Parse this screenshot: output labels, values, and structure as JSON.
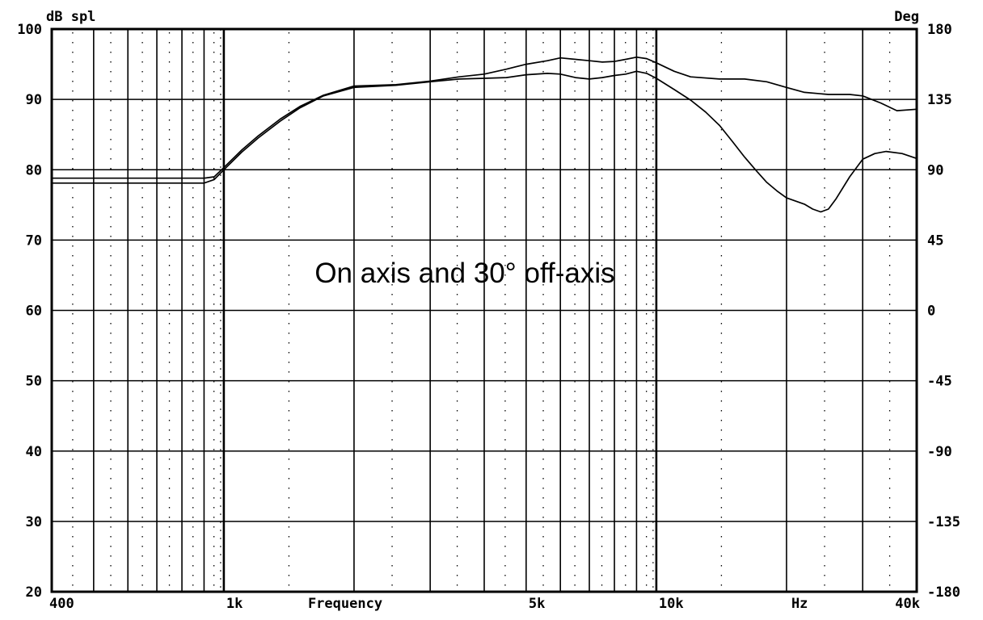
{
  "chart_data": {
    "type": "line",
    "title": "",
    "y_left_label": "dB spl",
    "y_right_label": "Deg",
    "x_label": "Frequency",
    "x_unit_label": "Hz",
    "annotation": "On axis and 30° off-axis",
    "x_scale": "log",
    "xlim": [
      400,
      40000
    ],
    "ylim": [
      20,
      100
    ],
    "y_right_lim": [
      -180,
      180
    ],
    "grid": true,
    "x_ticks": [
      {
        "value": 400,
        "label": "400"
      },
      {
        "value": 1000,
        "label": "1k"
      },
      {
        "value": 5000,
        "label": "5k"
      },
      {
        "value": 10000,
        "label": "10k"
      },
      {
        "value": 40000,
        "label": "40k"
      }
    ],
    "y_left_ticks": [
      "100",
      "90",
      "80",
      "70",
      "60",
      "50",
      "40",
      "30",
      "20"
    ],
    "y_right_ticks": [
      "180",
      "135",
      "90",
      "45",
      "0",
      "-45",
      "-90",
      "-135",
      "-180"
    ],
    "series": [
      {
        "color": "#000000",
        "points": [
          [
            400,
            78.8
          ],
          [
            600,
            78.8
          ],
          [
            900,
            78.8
          ],
          [
            950,
            79.0
          ],
          [
            1000,
            80.3
          ],
          [
            1100,
            82.8
          ],
          [
            1200,
            84.8
          ],
          [
            1350,
            87.2
          ],
          [
            1500,
            89.0
          ],
          [
            1700,
            90.6
          ],
          [
            2000,
            91.9
          ],
          [
            2500,
            92.1
          ],
          [
            3000,
            92.6
          ],
          [
            3500,
            93.2
          ],
          [
            4000,
            93.6
          ],
          [
            4500,
            94.3
          ],
          [
            5000,
            95.0
          ],
          [
            5600,
            95.5
          ],
          [
            6000,
            95.9
          ],
          [
            6500,
            95.7
          ],
          [
            7000,
            95.5
          ],
          [
            7500,
            95.3
          ],
          [
            8000,
            95.4
          ],
          [
            8500,
            95.7
          ],
          [
            9000,
            96.0
          ],
          [
            9500,
            95.8
          ],
          [
            10000,
            95.2
          ],
          [
            11000,
            94.0
          ],
          [
            12000,
            93.2
          ],
          [
            14000,
            92.9
          ],
          [
            16000,
            92.9
          ],
          [
            18000,
            92.5
          ],
          [
            20000,
            91.7
          ],
          [
            22000,
            91.0
          ],
          [
            25000,
            90.7
          ],
          [
            28000,
            90.7
          ],
          [
            30000,
            90.5
          ],
          [
            33000,
            89.5
          ],
          [
            36000,
            88.4
          ],
          [
            40000,
            88.6
          ]
        ]
      },
      {
        "color": "#000000",
        "points": [
          [
            400,
            78.1
          ],
          [
            600,
            78.1
          ],
          [
            900,
            78.1
          ],
          [
            950,
            78.6
          ],
          [
            1000,
            80.0
          ],
          [
            1100,
            82.5
          ],
          [
            1200,
            84.5
          ],
          [
            1350,
            86.9
          ],
          [
            1500,
            88.8
          ],
          [
            1700,
            90.5
          ],
          [
            2000,
            91.7
          ],
          [
            2500,
            92.0
          ],
          [
            3000,
            92.5
          ],
          [
            3500,
            92.9
          ],
          [
            4000,
            93.0
          ],
          [
            4500,
            93.1
          ],
          [
            5000,
            93.5
          ],
          [
            5600,
            93.7
          ],
          [
            6000,
            93.6
          ],
          [
            6500,
            93.1
          ],
          [
            7000,
            92.9
          ],
          [
            7500,
            93.1
          ],
          [
            8000,
            93.4
          ],
          [
            8500,
            93.6
          ],
          [
            9000,
            94.0
          ],
          [
            9500,
            93.7
          ],
          [
            10000,
            93.0
          ],
          [
            11000,
            91.4
          ],
          [
            12000,
            89.9
          ],
          [
            13000,
            88.2
          ],
          [
            14000,
            86.3
          ],
          [
            15000,
            84.0
          ],
          [
            16000,
            81.8
          ],
          [
            17000,
            79.9
          ],
          [
            18000,
            78.2
          ],
          [
            19000,
            77.0
          ],
          [
            20000,
            76.0
          ],
          [
            22000,
            75.1
          ],
          [
            23000,
            74.4
          ],
          [
            24000,
            74.0
          ],
          [
            25000,
            74.4
          ],
          [
            26000,
            75.8
          ],
          [
            28000,
            79.0
          ],
          [
            30000,
            81.5
          ],
          [
            32000,
            82.3
          ],
          [
            34000,
            82.6
          ],
          [
            37000,
            82.3
          ],
          [
            40000,
            81.6
          ]
        ]
      }
    ]
  }
}
